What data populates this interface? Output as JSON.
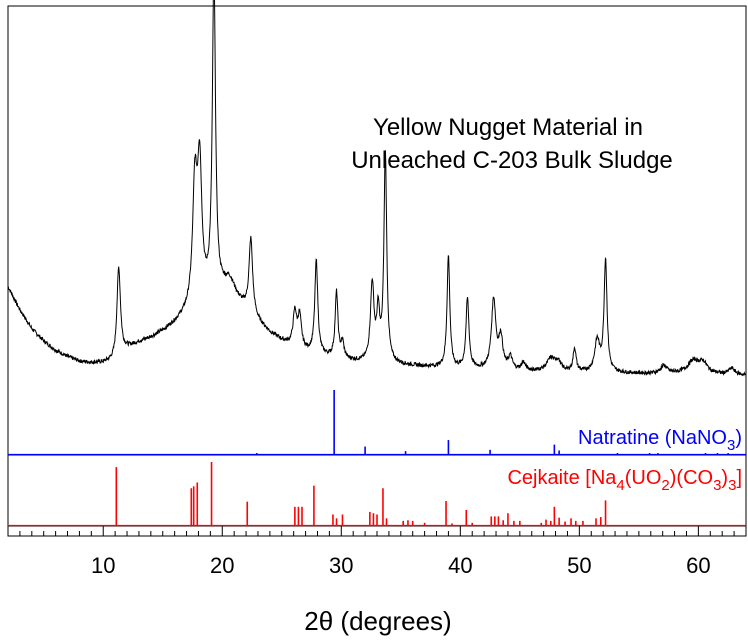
{
  "chart_data": {
    "type": "line",
    "title_lines": [
      "Yellow Nugget Material in",
      "Unleached C-203 Bulk Sludge"
    ],
    "xlabel": "2θ (degrees)",
    "ylabel": "",
    "xlim": [
      2,
      64
    ],
    "x_ticks": [
      10,
      20,
      30,
      40,
      50,
      60
    ],
    "grid": false,
    "series": [
      {
        "kind": "diffraction-pattern",
        "color": "#000000",
        "baseline": [
          [
            2,
            0.6
          ],
          [
            3,
            0.45
          ],
          [
            4,
            0.33
          ],
          [
            5,
            0.25
          ],
          [
            6,
            0.19
          ],
          [
            7,
            0.15
          ],
          [
            8,
            0.12
          ],
          [
            9,
            0.11
          ],
          [
            10,
            0.11
          ],
          [
            11,
            0.12
          ],
          [
            12,
            0.2
          ],
          [
            13,
            0.24
          ],
          [
            14,
            0.27
          ],
          [
            15,
            0.31
          ],
          [
            16,
            0.36
          ],
          [
            17,
            0.42
          ],
          [
            18,
            0.48
          ],
          [
            19,
            0.52
          ],
          [
            20,
            0.55
          ],
          [
            21,
            0.52
          ],
          [
            22,
            0.45
          ],
          [
            23,
            0.37
          ],
          [
            24,
            0.3
          ],
          [
            25,
            0.25
          ],
          [
            26,
            0.21
          ],
          [
            27,
            0.18
          ],
          [
            28,
            0.16
          ],
          [
            30,
            0.13
          ],
          [
            32,
            0.11
          ],
          [
            34,
            0.1
          ],
          [
            36,
            0.09
          ],
          [
            38,
            0.08
          ],
          [
            40,
            0.07
          ],
          [
            44,
            0.06
          ],
          [
            48,
            0.05
          ],
          [
            52,
            0.045
          ],
          [
            56,
            0.04
          ],
          [
            60,
            0.04
          ],
          [
            64,
            0.03
          ]
        ],
        "peaks": [
          {
            "x": 11.3,
            "height": 0.58,
            "width": 0.18
          },
          {
            "x": 17.7,
            "height": 0.75,
            "width": 0.22
          },
          {
            "x": 18.1,
            "height": 0.85,
            "width": 0.22
          },
          {
            "x": 19.3,
            "height": 2.05,
            "width": 0.16
          },
          {
            "x": 20.6,
            "height": 0.1,
            "width": 0.5
          },
          {
            "x": 22.4,
            "height": 0.48,
            "width": 0.18
          },
          {
            "x": 26.1,
            "height": 0.22,
            "width": 0.18
          },
          {
            "x": 26.5,
            "height": 0.2,
            "width": 0.18
          },
          {
            "x": 27.9,
            "height": 0.6,
            "width": 0.15
          },
          {
            "x": 29.6,
            "height": 0.42,
            "width": 0.14
          },
          {
            "x": 30.1,
            "height": 0.1,
            "width": 0.15
          },
          {
            "x": 32.6,
            "height": 0.5,
            "width": 0.18
          },
          {
            "x": 33.1,
            "height": 0.3,
            "width": 0.15
          },
          {
            "x": 33.7,
            "height": 1.35,
            "width": 0.14
          },
          {
            "x": 39.0,
            "height": 0.72,
            "width": 0.14
          },
          {
            "x": 40.6,
            "height": 0.45,
            "width": 0.15
          },
          {
            "x": 42.8,
            "height": 0.45,
            "width": 0.22
          },
          {
            "x": 43.4,
            "height": 0.2,
            "width": 0.2
          },
          {
            "x": 44.2,
            "height": 0.08,
            "width": 0.2
          },
          {
            "x": 45.3,
            "height": 0.05,
            "width": 0.2
          },
          {
            "x": 47.6,
            "height": 0.08,
            "width": 0.4
          },
          {
            "x": 48.2,
            "height": 0.06,
            "width": 0.3
          },
          {
            "x": 49.6,
            "height": 0.15,
            "width": 0.15
          },
          {
            "x": 51.5,
            "height": 0.2,
            "width": 0.25
          },
          {
            "x": 52.2,
            "height": 0.72,
            "width": 0.15
          },
          {
            "x": 57.1,
            "height": 0.05,
            "width": 0.3
          },
          {
            "x": 59.6,
            "height": 0.08,
            "width": 0.6
          },
          {
            "x": 60.4,
            "height": 0.06,
            "width": 0.4
          },
          {
            "x": 62.8,
            "height": 0.04,
            "width": 0.3
          }
        ],
        "y_max": 2.3
      },
      {
        "kind": "reference-sticks",
        "label_main": "Natratine (NaNO",
        "label_parts": [
          {
            "text": "Natratine (NaNO",
            "sub": false
          },
          {
            "text": "3",
            "sub": true
          },
          {
            "text": ")",
            "sub": false
          }
        ],
        "color": "#0000ff",
        "sticks": [
          [
            22.9,
            0.03
          ],
          [
            29.4,
            1.0
          ],
          [
            32.0,
            0.13
          ],
          [
            35.4,
            0.06
          ],
          [
            39.0,
            0.23
          ],
          [
            42.5,
            0.08
          ],
          [
            47.9,
            0.16
          ],
          [
            48.3,
            0.07
          ],
          [
            53.2,
            0.03
          ],
          [
            55.9,
            0.03
          ],
          [
            56.6,
            0.03
          ],
          [
            60.6,
            0.03
          ],
          [
            61.6,
            0.03
          ],
          [
            62.5,
            0.03
          ]
        ]
      },
      {
        "kind": "reference-sticks",
        "label_parts": [
          {
            "text": "Cejkaite [Na",
            "sub": false
          },
          {
            "text": "4",
            "sub": true
          },
          {
            "text": "(UO",
            "sub": false
          },
          {
            "text": "2",
            "sub": true
          },
          {
            "text": ")(CO",
            "sub": false
          },
          {
            "text": "3",
            "sub": true
          },
          {
            "text": ")",
            "sub": false
          },
          {
            "text": "3",
            "sub": true
          },
          {
            "text": "]",
            "sub": false
          }
        ],
        "color": "#ff0000",
        "sticks": [
          [
            11.1,
            0.92
          ],
          [
            17.4,
            0.59
          ],
          [
            17.6,
            0.62
          ],
          [
            17.9,
            0.68
          ],
          [
            19.1,
            1.0
          ],
          [
            22.1,
            0.38
          ],
          [
            26.1,
            0.3
          ],
          [
            26.4,
            0.3
          ],
          [
            26.7,
            0.3
          ],
          [
            27.7,
            0.63
          ],
          [
            29.3,
            0.18
          ],
          [
            29.6,
            0.12
          ],
          [
            30.1,
            0.18
          ],
          [
            32.4,
            0.22
          ],
          [
            32.7,
            0.2
          ],
          [
            33.0,
            0.18
          ],
          [
            33.5,
            0.59
          ],
          [
            33.8,
            0.12
          ],
          [
            35.2,
            0.08
          ],
          [
            35.6,
            0.09
          ],
          [
            36.0,
            0.08
          ],
          [
            37.0,
            0.05
          ],
          [
            38.8,
            0.39
          ],
          [
            39.3,
            0.04
          ],
          [
            40.5,
            0.25
          ],
          [
            41.0,
            0.05
          ],
          [
            42.6,
            0.15
          ],
          [
            42.9,
            0.15
          ],
          [
            43.2,
            0.15
          ],
          [
            43.6,
            0.09
          ],
          [
            44.0,
            0.2
          ],
          [
            44.5,
            0.08
          ],
          [
            45.0,
            0.08
          ],
          [
            46.8,
            0.05
          ],
          [
            47.2,
            0.1
          ],
          [
            47.6,
            0.08
          ],
          [
            47.9,
            0.3
          ],
          [
            48.3,
            0.13
          ],
          [
            48.8,
            0.07
          ],
          [
            49.3,
            0.12
          ],
          [
            49.7,
            0.08
          ],
          [
            50.3,
            0.08
          ],
          [
            51.4,
            0.12
          ],
          [
            51.8,
            0.14
          ],
          [
            52.2,
            0.4
          ]
        ]
      }
    ]
  }
}
